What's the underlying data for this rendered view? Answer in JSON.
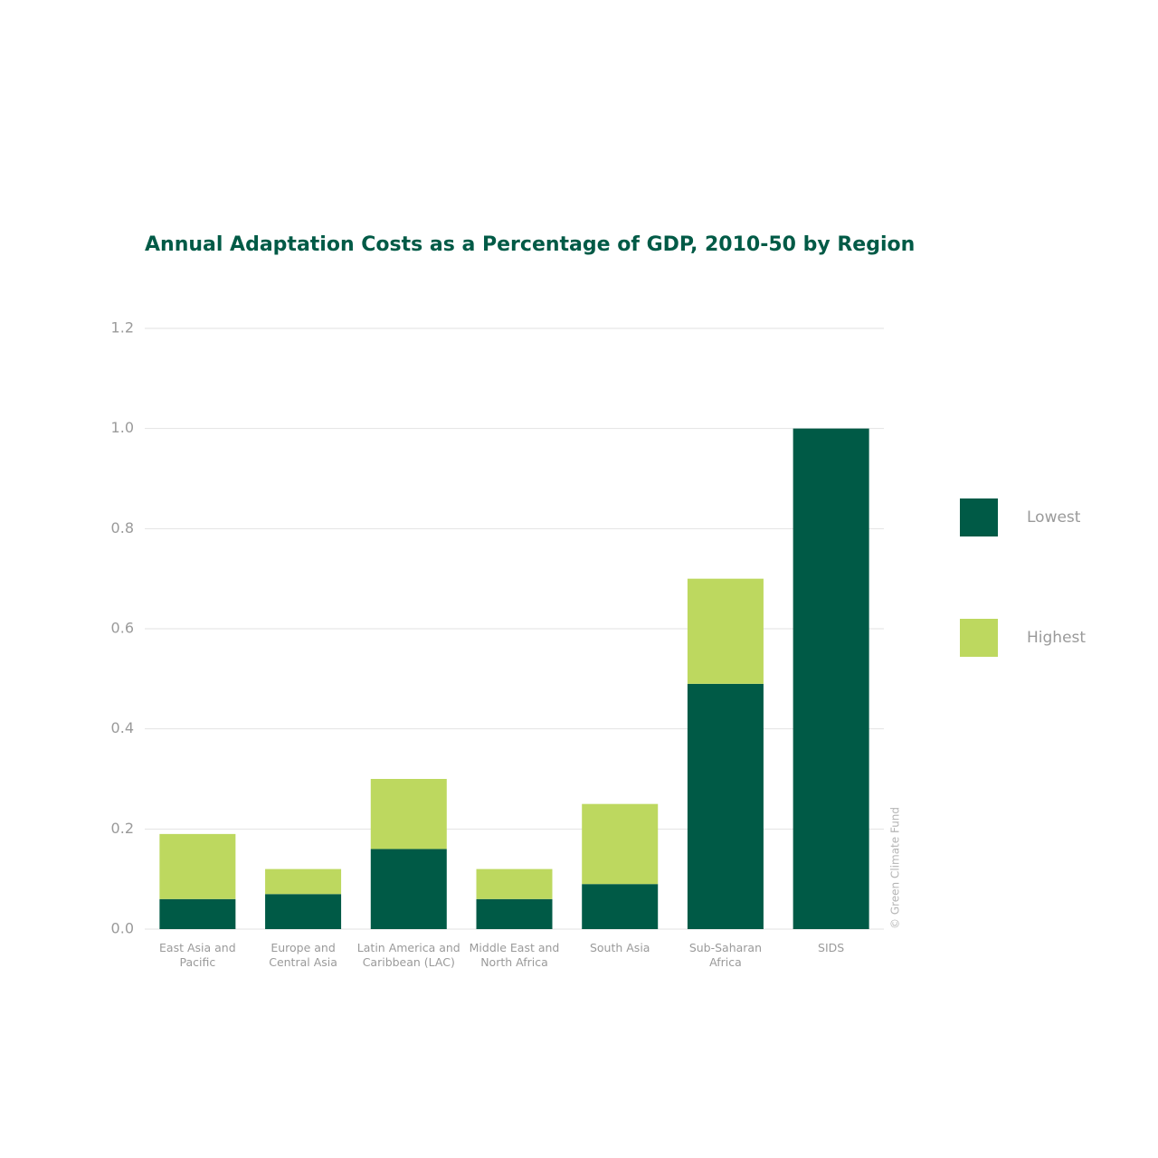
{
  "chart_data": {
    "type": "stacked_bar",
    "title": "Annual Adaptation Costs as a Percentage of GDP, 2010-50 by Region",
    "categories": [
      "East Asia and Pacific",
      "Europe and Central Asia",
      "Latin America and Caribbean (LAC)",
      "Middle East and North Africa",
      "South Asia",
      "Sub-Saharan Africa",
      "SIDS"
    ],
    "series": [
      {
        "name": "Lowest",
        "color": "#005a46",
        "values": [
          0.06,
          0.07,
          0.16,
          0.06,
          0.09,
          0.49,
          1.0
        ]
      },
      {
        "name": "Highest",
        "color": "#bdd85f",
        "values": [
          0.13,
          0.05,
          0.14,
          0.06,
          0.16,
          0.21,
          0
        ]
      }
    ],
    "ylim": [
      0,
      1.2
    ],
    "yticks": [
      {
        "value": 0,
        "label": "0.0"
      },
      0.2,
      0.4,
      0.6,
      0.8,
      {
        "value": 1,
        "label": "1.0"
      },
      1.2
    ],
    "grid": true,
    "legend": "right",
    "credit": "© Green Climate Fund"
  }
}
